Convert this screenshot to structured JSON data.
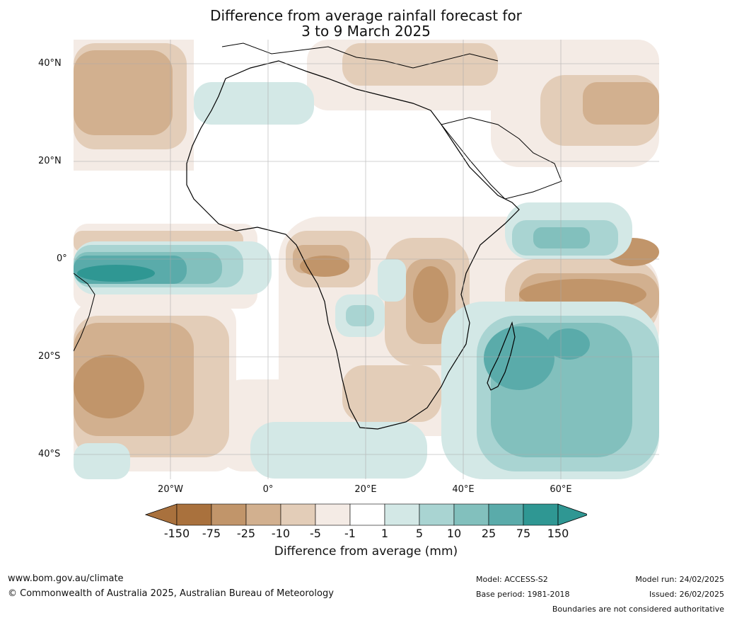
{
  "title": {
    "line1": "Difference from average rainfall forecast for",
    "line2": "3 to 9 March 2025"
  },
  "axes": {
    "lat_labels": [
      "40°N",
      "20°N",
      "0°",
      "20°S",
      "40°S"
    ],
    "lon_labels": [
      "20°W",
      "0°",
      "20°E",
      "40°E",
      "60°E"
    ]
  },
  "colorbar": {
    "label": "Difference from average (mm)",
    "ticks": [
      "-150",
      "-75",
      "-25",
      "-10",
      "-5",
      "-1",
      "1",
      "5",
      "10",
      "25",
      "75",
      "150"
    ],
    "colors": [
      "#a9713d",
      "#c1956a",
      "#d2b08f",
      "#e3cdb8",
      "#f4ebe5",
      "#ffffff",
      "#d3e8e6",
      "#a9d4d2",
      "#82c0bd",
      "#5aabaa",
      "#2f9793"
    ],
    "extend_low_color": "#a9713d",
    "extend_high_color": "#2f9793"
  },
  "footer": {
    "website": "www.bom.gov.au/climate",
    "copyright": "© Commonwealth of Australia 2025, Australian Bureau of Meteorology",
    "model": "Model: ACCESS-S2",
    "base_period": "Base period: 1981-2018",
    "model_run": "Model run: 24/02/2025",
    "issued": "Issued: 26/02/2025",
    "disclaimer": "Boundaries are not considered authoritative"
  }
}
